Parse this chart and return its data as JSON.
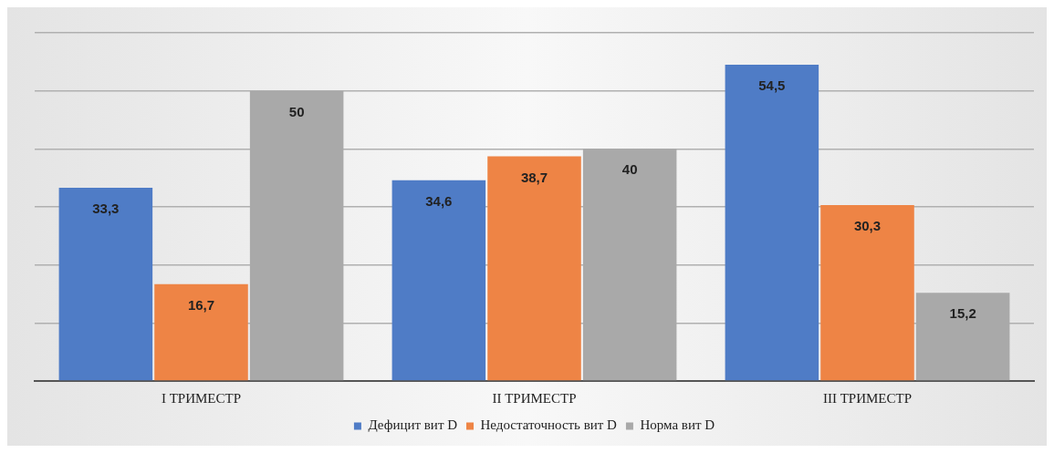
{
  "chart_data": {
    "type": "bar",
    "categories": [
      "I ТРИМЕСТР",
      "II ТРИМЕСТР",
      "III ТРИМЕСТР"
    ],
    "series": [
      {
        "name": "Дефицит вит D",
        "color": "#4f7cc6",
        "values": [
          33.3,
          34.6,
          54.5
        ],
        "value_labels": [
          "33,3",
          "34,6",
          "54,5"
        ]
      },
      {
        "name": "Недостаточность вит D",
        "color": "#ee8445",
        "values": [
          16.7,
          38.7,
          30.3
        ],
        "value_labels": [
          "16,7",
          "38,7",
          "30,3"
        ]
      },
      {
        "name": "Норма вит D",
        "color": "#a9a9a9",
        "values": [
          50,
          40,
          15.2
        ],
        "value_labels": [
          "50",
          "40",
          "15,2"
        ]
      }
    ],
    "tick_labels": "x",
    "grid": "y",
    "legend": "bottom"
  }
}
